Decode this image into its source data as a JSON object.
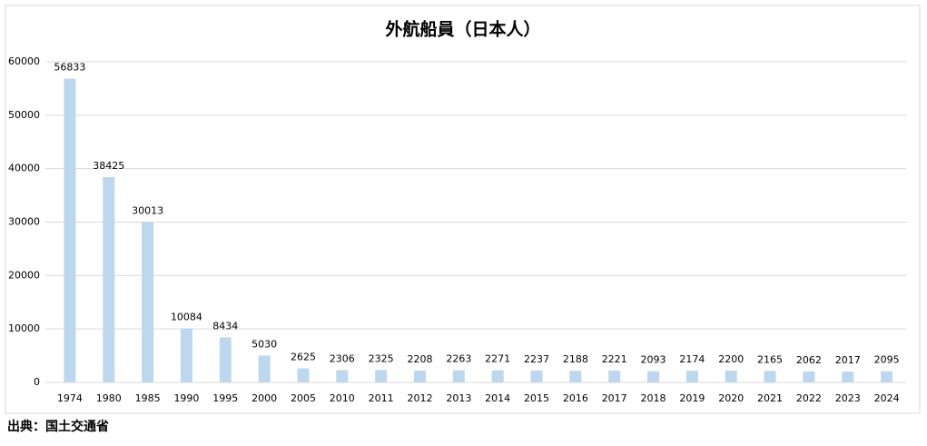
{
  "chart_data": {
    "type": "bar",
    "title": "外航船員（日本人）",
    "categories": [
      "1974",
      "1980",
      "1985",
      "1990",
      "1995",
      "2000",
      "2005",
      "2010",
      "2011",
      "2012",
      "2013",
      "2014",
      "2015",
      "2016",
      "2017",
      "2018",
      "2019",
      "2020",
      "2021",
      "2022",
      "2023",
      "2024"
    ],
    "values": [
      56833,
      38425,
      30013,
      10084,
      8434,
      5030,
      2625,
      2306,
      2325,
      2208,
      2263,
      2271,
      2237,
      2188,
      2221,
      2093,
      2174,
      2200,
      2165,
      2062,
      2017,
      2095
    ],
    "color": "#bdd7ee",
    "ylim": [
      0,
      60000
    ],
    "yticks": [
      0,
      10000,
      20000,
      30000,
      40000,
      50000,
      60000
    ],
    "grid": true,
    "source": "出典：国土交通省"
  }
}
